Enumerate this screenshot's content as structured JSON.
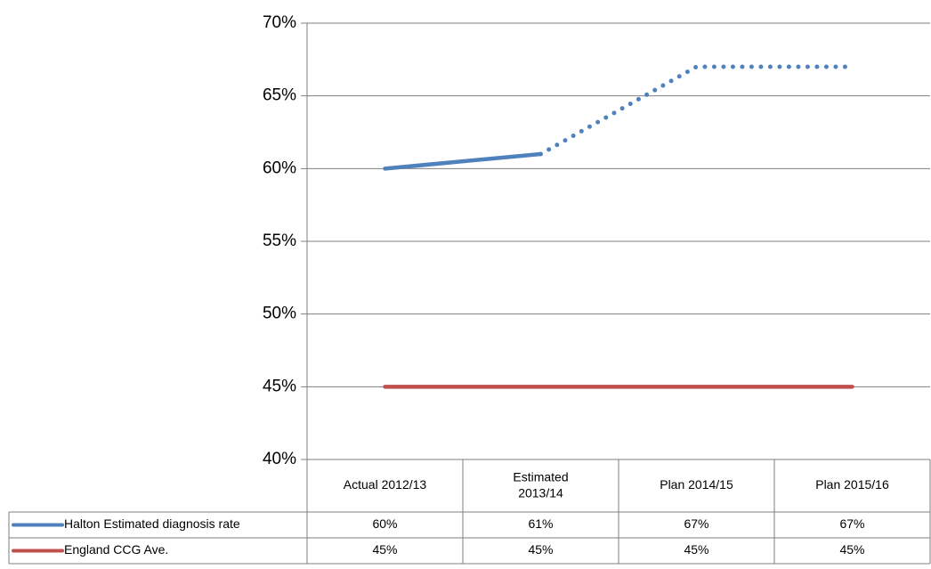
{
  "chart_data": {
    "type": "line",
    "categories": [
      "Actual 2012/13",
      "Estimated\n2013/14",
      "Plan 2014/15",
      "Plan 2015/16"
    ],
    "series": [
      {
        "name": "Halton Estimated diagnosis rate",
        "color": "#4f81bd",
        "values": [
          60,
          61,
          67,
          67
        ],
        "value_labels": [
          "60%",
          "61%",
          "67%",
          "67%"
        ],
        "line_styles": [
          "solid",
          "dotted",
          "dotted"
        ]
      },
      {
        "name": "England CCG Ave.",
        "color": "#c0504d",
        "values": [
          45,
          45,
          45,
          45
        ],
        "value_labels": [
          "45%",
          "45%",
          "45%",
          "45%"
        ],
        "line_styles": [
          "solid",
          "solid",
          "solid"
        ]
      }
    ],
    "ylim": [
      40,
      70
    ],
    "yticks": [
      {
        "value": 40,
        "label": "40%"
      },
      {
        "value": 45,
        "label": "45%"
      },
      {
        "value": 50,
        "label": "50%"
      },
      {
        "value": 55,
        "label": "55%"
      },
      {
        "value": 60,
        "label": "60%"
      },
      {
        "value": 65,
        "label": "65%"
      },
      {
        "value": 70,
        "label": "70%"
      }
    ],
    "grid": true,
    "legend": "data-table"
  }
}
